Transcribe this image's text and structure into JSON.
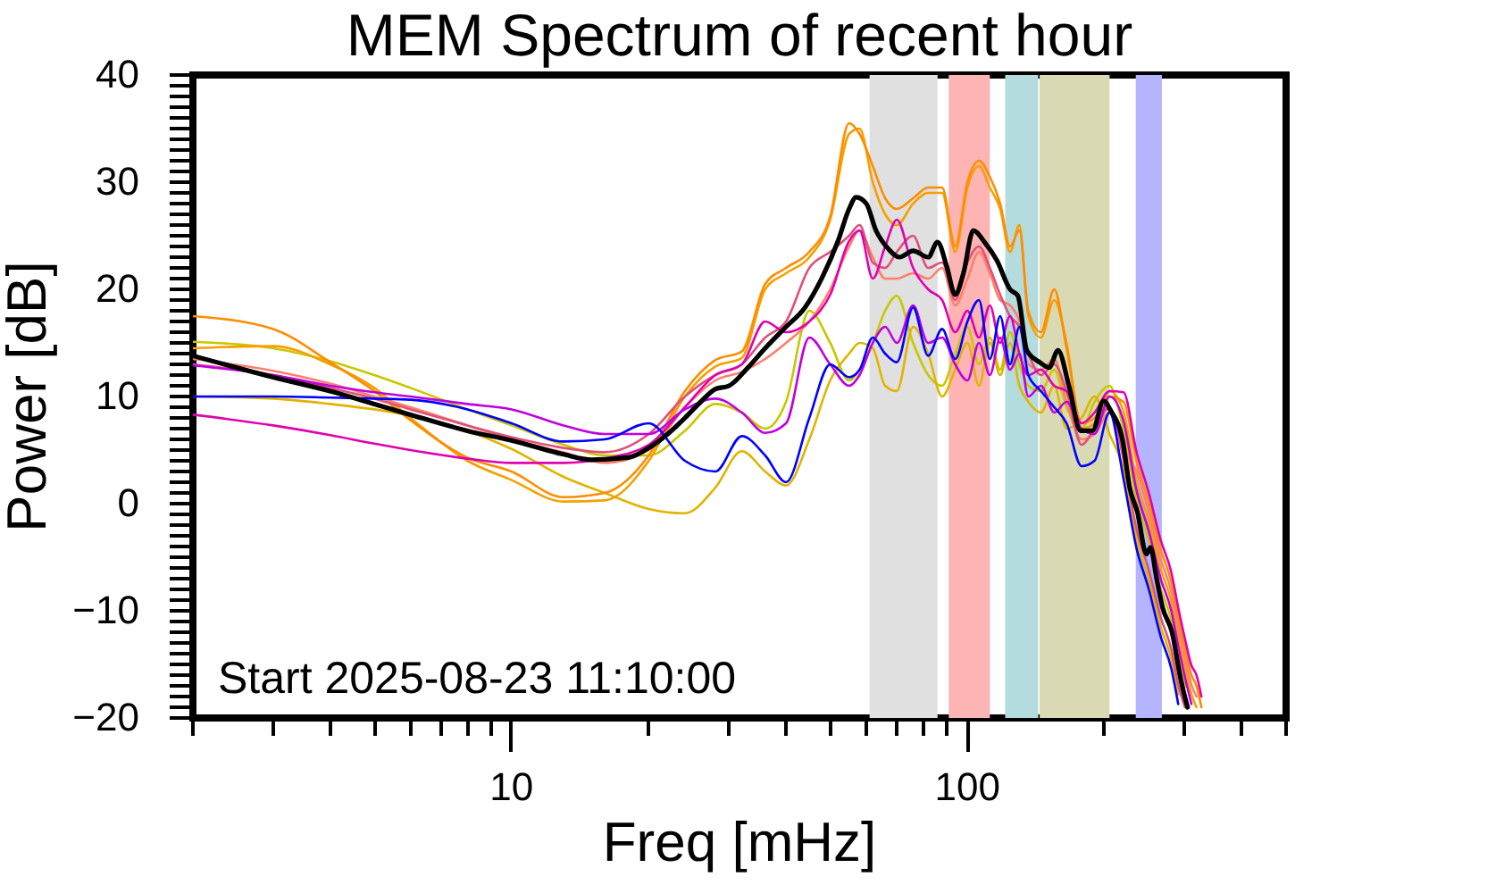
{
  "chart_data": {
    "type": "line",
    "title": "MEM Spectrum of recent hour",
    "xlabel": "Freq [mHz]",
    "ylabel": "Power [dB]",
    "annotations": [
      "Start 2025-08-23 11:10:00"
    ],
    "log": "x",
    "xlim": [
      2,
      500
    ],
    "ylim": [
      -20,
      40
    ],
    "xticks": [
      {
        "value": 2,
        "label": null
      },
      {
        "value": 3,
        "label": null
      },
      {
        "value": 4,
        "label": null
      },
      {
        "value": 5,
        "label": null
      },
      {
        "value": 6,
        "label": null
      },
      {
        "value": 7,
        "label": null
      },
      {
        "value": 8,
        "label": null
      },
      {
        "value": 9,
        "label": null
      },
      10,
      {
        "value": 20,
        "label": null
      },
      {
        "value": 30,
        "label": null
      },
      {
        "value": 40,
        "label": null
      },
      {
        "value": 50,
        "label": null
      },
      {
        "value": 60,
        "label": null
      },
      {
        "value": 70,
        "label": null
      },
      {
        "value": 80,
        "label": null
      },
      {
        "value": 90,
        "label": null
      },
      100,
      {
        "value": 200,
        "label": null
      },
      {
        "value": 300,
        "label": null
      },
      {
        "value": 400,
        "label": null
      },
      {
        "value": 500,
        "label": null
      }
    ],
    "yticks": [
      -20,
      {
        "value": -19,
        "label": null
      },
      {
        "value": -18,
        "label": null
      },
      {
        "value": -17,
        "label": null
      },
      {
        "value": -16,
        "label": null
      },
      {
        "value": -15,
        "label": null
      },
      {
        "value": -14,
        "label": null
      },
      {
        "value": -13,
        "label": null
      },
      {
        "value": -12,
        "label": null
      },
      {
        "value": -11,
        "label": null
      },
      -10,
      {
        "value": -9,
        "label": null
      },
      {
        "value": -8,
        "label": null
      },
      {
        "value": -7,
        "label": null
      },
      {
        "value": -6,
        "label": null
      },
      {
        "value": -5,
        "label": null
      },
      {
        "value": -4,
        "label": null
      },
      {
        "value": -3,
        "label": null
      },
      {
        "value": -2,
        "label": null
      },
      {
        "value": -1,
        "label": null
      },
      0,
      {
        "value": 1,
        "label": null
      },
      {
        "value": 2,
        "label": null
      },
      {
        "value": 3,
        "label": null
      },
      {
        "value": 4,
        "label": null
      },
      {
        "value": 5,
        "label": null
      },
      {
        "value": 6,
        "label": null
      },
      {
        "value": 7,
        "label": null
      },
      {
        "value": 8,
        "label": null
      },
      {
        "value": 9,
        "label": null
      },
      10,
      {
        "value": 11,
        "label": null
      },
      {
        "value": 12,
        "label": null
      },
      {
        "value": 13,
        "label": null
      },
      {
        "value": 14,
        "label": null
      },
      {
        "value": 15,
        "label": null
      },
      {
        "value": 16,
        "label": null
      },
      {
        "value": 17,
        "label": null
      },
      {
        "value": 18,
        "label": null
      },
      {
        "value": 19,
        "label": null
      },
      20,
      {
        "value": 21,
        "label": null
      },
      {
        "value": 22,
        "label": null
      },
      {
        "value": 23,
        "label": null
      },
      {
        "value": 24,
        "label": null
      },
      {
        "value": 25,
        "label": null
      },
      {
        "value": 26,
        "label": null
      },
      {
        "value": 27,
        "label": null
      },
      {
        "value": 28,
        "label": null
      },
      {
        "value": 29,
        "label": null
      },
      30,
      {
        "value": 31,
        "label": null
      },
      {
        "value": 32,
        "label": null
      },
      {
        "value": 33,
        "label": null
      },
      {
        "value": 34,
        "label": null
      },
      {
        "value": 35,
        "label": null
      },
      {
        "value": 36,
        "label": null
      },
      {
        "value": 37,
        "label": null
      },
      {
        "value": 38,
        "label": null
      },
      {
        "value": 39,
        "label": null
      },
      40
    ],
    "bands": [
      {
        "axis": "x",
        "from": 61,
        "to": 86,
        "color": "#e0e0e0"
      },
      {
        "axis": "x",
        "from": 91,
        "to": 112,
        "color": "#ffb4b4"
      },
      {
        "axis": "x",
        "from": 121,
        "to": 143,
        "color": "#b4dcde"
      },
      {
        "axis": "x",
        "from": 144,
        "to": 205,
        "color": "#d9d9b4"
      },
      {
        "axis": "x",
        "from": 234,
        "to": 267,
        "color": "#b4b4ff"
      }
    ],
    "x": [
      2,
      3,
      4,
      5,
      6,
      8,
      10,
      13,
      16,
      20,
      24,
      28,
      32,
      36,
      40,
      45,
      50,
      55,
      58,
      62,
      66,
      70,
      76,
      82,
      88,
      94,
      100,
      106,
      112,
      118,
      124,
      130,
      136,
      145,
      155,
      165,
      178,
      190,
      205,
      220,
      235,
      250,
      265,
      280,
      290,
      300,
      310,
      318,
      326
    ],
    "series": [
      {
        "color": "#c8c800",
        "values": [
          15.1,
          14.5,
          13.3,
          12.0,
          10.8,
          8.8,
          7.3,
          5.5,
          4.5,
          4.5,
          6.8,
          9.3,
          8.5,
          7.0,
          9.5,
          18.0,
          15.0,
          11.5,
          12.5,
          15.0,
          18.0,
          19.4,
          15.0,
          12.0,
          11.0,
          14.0,
          16.5,
          13.0,
          15.5,
          12.5,
          16.0,
          13.0,
          11.0,
          10.5,
          12.5,
          9.0,
          7.0,
          9.5,
          11.0,
          6.8,
          0.3,
          -3.5,
          -7.8,
          -10.9,
          -14.2,
          -17.1,
          null,
          null,
          null
        ]
      },
      {
        "color": "#e0b400",
        "values": [
          10.0,
          9.8,
          9.3,
          8.8,
          8.2,
          6.8,
          5.1,
          2.5,
          1.0,
          -0.5,
          -0.9,
          1.5,
          4.9,
          3.0,
          1.7,
          6.0,
          11.5,
          14.0,
          15.0,
          14.5,
          11.0,
          10.5,
          16.5,
          14.0,
          10.0,
          12.5,
          15.0,
          11.0,
          15.0,
          12.0,
          15.0,
          11.0,
          9.5,
          8.5,
          11.0,
          7.0,
          8.0,
          10.0,
          6.5,
          3.2,
          -3.3,
          -7.1,
          -11.4,
          -14.5,
          -17.8,
          null,
          null,
          null,
          null
        ]
      },
      {
        "color": "#f5a000",
        "values": [
          14.5,
          14.7,
          13.0,
          10.8,
          8.0,
          4.0,
          2.2,
          0.2,
          0.3,
          4.0,
          10.0,
          12.8,
          13.6,
          20.0,
          21.5,
          23.0,
          26.5,
          34.5,
          35.0,
          30.0,
          27.0,
          26.0,
          28.0,
          29.0,
          29.0,
          23.5,
          29.5,
          31.5,
          29.5,
          27.5,
          23.5,
          26.0,
          17.5,
          15.5,
          19.0,
          15.0,
          7.0,
          7.5,
          10.5,
          8.6,
          2.1,
          -1.7,
          -6.0,
          -9.1,
          -12.4,
          -15.3,
          -17.8,
          -19.0,
          null
        ]
      },
      {
        "color": "#ff8c00",
        "values": [
          17.5,
          16.3,
          13.2,
          10.5,
          7.8,
          4.3,
          3.0,
          0.6,
          1.0,
          4.5,
          10.5,
          13.4,
          14.2,
          20.5,
          22.0,
          23.5,
          26.8,
          35.5,
          34.5,
          31.5,
          28.5,
          27.5,
          28.5,
          29.5,
          29.5,
          24.0,
          30.0,
          32.0,
          30.5,
          28.0,
          24.0,
          25.5,
          18.0,
          16.0,
          20.0,
          14.5,
          7.5,
          8.0,
          10.0,
          9.5,
          3.9,
          0.1,
          -4.2,
          -7.3,
          -10.6,
          -13.5,
          -16.0,
          -17.0,
          -19.0
        ]
      },
      {
        "color": "#ff7f6a",
        "values": [
          13.5,
          12.4,
          11.2,
          10.0,
          9.0,
          7.3,
          6.0,
          4.8,
          3.8,
          5.0,
          9.0,
          11.5,
          12.3,
          13.5,
          15.0,
          17.0,
          20.0,
          24.0,
          25.5,
          23.0,
          21.0,
          21.0,
          21.5,
          21.0,
          22.0,
          18.5,
          21.0,
          23.5,
          21.5,
          19.0,
          18.5,
          17.0,
          13.0,
          12.5,
          13.5,
          9.5,
          6.0,
          6.5,
          8.5,
          5.0,
          3.0,
          -0.8,
          -5.1,
          -8.2,
          -11.5,
          -14.4,
          -16.9,
          -18.0,
          null
        ]
      },
      {
        "color": "#e0507a",
        "values": [
          13.0,
          12.0,
          10.8,
          9.8,
          8.8,
          7.3,
          6.2,
          5.2,
          4.8,
          6.5,
          10.0,
          12.0,
          13.0,
          15.5,
          17.0,
          22.0,
          23.5,
          25.0,
          26.0,
          22.5,
          22.0,
          23.5,
          25.0,
          22.0,
          22.5,
          19.0,
          22.5,
          24.0,
          22.0,
          19.5,
          17.5,
          16.5,
          14.0,
          12.0,
          13.0,
          10.5,
          5.5,
          7.0,
          9.0,
          4.1,
          -2.4,
          -6.2,
          -10.5,
          -13.6,
          -16.9,
          -19.0,
          null,
          null,
          null
        ]
      },
      {
        "color": "#e000b0",
        "values": [
          8.3,
          7.3,
          6.4,
          5.6,
          5.0,
          4.2,
          3.8,
          3.8,
          4.2,
          5.5,
          9.0,
          12.0,
          13.0,
          17.0,
          16.0,
          17.0,
          19.5,
          24.5,
          25.5,
          21.0,
          24.0,
          26.5,
          22.0,
          20.0,
          19.0,
          16.0,
          18.0,
          15.5,
          18.5,
          15.0,
          17.5,
          14.0,
          12.0,
          12.5,
          11.0,
          10.5,
          7.5,
          8.5,
          10.5,
          10.4,
          4.8,
          1.0,
          -3.3,
          -6.4,
          -9.7,
          -12.6,
          -15.1,
          -16.0,
          -18.0
        ]
      },
      {
        "color": "#c000e0",
        "values": [
          12.9,
          12.0,
          11.0,
          10.4,
          10.0,
          9.3,
          8.8,
          7.3,
          6.5,
          6.5,
          8.8,
          9.8,
          8.5,
          6.6,
          7.5,
          15.5,
          13.0,
          11.0,
          12.0,
          15.0,
          16.5,
          15.0,
          18.5,
          15.0,
          15.5,
          13.0,
          11.5,
          15.0,
          12.0,
          15.5,
          12.5,
          14.0,
          10.0,
          11.0,
          8.5,
          9.5,
          7.0,
          6.5,
          10.0,
          7.7,
          1.2,
          -2.6,
          -6.9,
          -10.0,
          -13.3,
          -16.2,
          -18.7,
          null,
          null
        ]
      },
      {
        "color": "#0000ff",
        "values": [
          10.0,
          10.0,
          9.9,
          9.8,
          9.7,
          8.8,
          7.5,
          5.8,
          6.0,
          7.5,
          4.0,
          3.0,
          6.3,
          4.5,
          2.0,
          8.0,
          13.0,
          11.8,
          12.5,
          15.5,
          14.0,
          13.2,
          18.3,
          13.8,
          16.3,
          13.5,
          17.0,
          19.0,
          13.5,
          17.5,
          13.0,
          16.5,
          12.0,
          10.5,
          9.0,
          7.5,
          3.5,
          4.0,
          8.5,
          2.3,
          -4.2,
          -8.0,
          -12.3,
          -15.4,
          -18.7,
          null,
          null,
          null,
          null
        ]
      },
      {
        "color": "#000000",
        "x": [
          2,
          3,
          4,
          5,
          6,
          8,
          10,
          13,
          15,
          18,
          20,
          22,
          24,
          26,
          28,
          30,
          33,
          36,
          40,
          44,
          48,
          52,
          55,
          57,
          60,
          63,
          67,
          71,
          76,
          82,
          86,
          90,
          94,
          98,
          103,
          109,
          116,
          124,
          129,
          135,
          144,
          151,
          158,
          167,
          177,
          188,
          199,
          206,
          219,
          227,
          236,
          247,
          252,
          260,
          268,
          281,
          294,
          304
        ],
        "values": [
          13.8,
          11.8,
          10.5,
          9.3,
          8.3,
          6.8,
          5.9,
          4.6,
          4.1,
          4.3,
          5.2,
          6.5,
          8.0,
          9.5,
          10.7,
          11.0,
          12.7,
          14.5,
          16.5,
          18.3,
          21.1,
          24.5,
          27.5,
          28.6,
          28.0,
          25.5,
          23.8,
          23.0,
          23.6,
          23.0,
          24.4,
          22.2,
          19.5,
          21.5,
          25.5,
          24.4,
          22.7,
          20.0,
          19.4,
          14.3,
          13.2,
          12.7,
          14.3,
          11.0,
          6.8,
          6.8,
          9.6,
          8.7,
          5.9,
          1.5,
          -0.8,
          -4.7,
          -4.1,
          -7.0,
          -9.7,
          -12.0,
          -16.5,
          -19.0
        ]
      }
    ]
  }
}
